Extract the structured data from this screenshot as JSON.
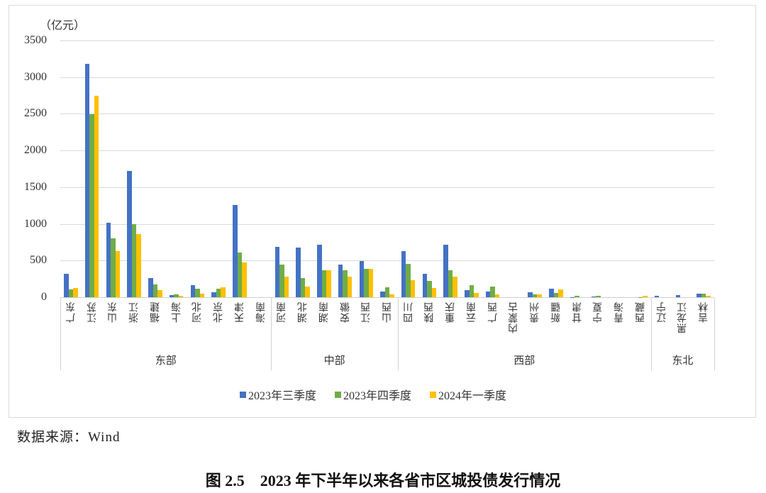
{
  "chart_data": {
    "type": "bar",
    "title": "图 2.5　2023 年下半年以来各省市区城投债发行情况",
    "ylabel": "（亿元）",
    "xlabel": "",
    "ylim": [
      0,
      3500
    ],
    "yticks": [
      0,
      500,
      1000,
      1500,
      2000,
      2500,
      3000,
      3500
    ],
    "grid": true,
    "legend_position": "bottom",
    "groups": [
      {
        "name": "东部",
        "categories": [
          "广东",
          "江苏",
          "山东",
          "浙江",
          "福建",
          "上海",
          "河北",
          "北京",
          "天津",
          "海南"
        ]
      },
      {
        "name": "中部",
        "categories": [
          "河南",
          "湖北",
          "湖南",
          "安徽",
          "江西",
          "山西"
        ]
      },
      {
        "name": "西部",
        "categories": [
          "四川",
          "陕西",
          "重庆",
          "云南",
          "广西",
          "内蒙古",
          "贵州",
          "新疆",
          "甘肃",
          "宁夏",
          "青海",
          "西藏"
        ]
      },
      {
        "name": "东北",
        "categories": [
          "辽宁",
          "黑龙江",
          "吉林"
        ]
      }
    ],
    "categories": [
      "广东",
      "江苏",
      "山东",
      "浙江",
      "福建",
      "上海",
      "河北",
      "北京",
      "天津",
      "海南",
      "河南",
      "湖北",
      "湖南",
      "安徽",
      "江西",
      "山西",
      "四川",
      "陕西",
      "重庆",
      "云南",
      "广西",
      "内蒙古",
      "贵州",
      "新疆",
      "甘肃",
      "宁夏",
      "青海",
      "西藏",
      "辽宁",
      "黑龙江",
      "吉林"
    ],
    "series": [
      {
        "name": "2023年三季度",
        "color": "#4472C4",
        "values": [
          320,
          3180,
          1020,
          1725,
          260,
          30,
          160,
          70,
          1260,
          0,
          690,
          675,
          720,
          440,
          495,
          75,
          630,
          320,
          720,
          100,
          75,
          0,
          65,
          120,
          3,
          5,
          0,
          0,
          22,
          25,
          48
        ]
      },
      {
        "name": "2023年四季度",
        "color": "#70AD47",
        "values": [
          105,
          2490,
          805,
          995,
          178,
          36,
          115,
          115,
          605,
          0,
          440,
          265,
          365,
          365,
          390,
          140,
          455,
          218,
          370,
          163,
          145,
          0,
          38,
          55,
          22,
          16,
          0,
          4,
          0,
          0,
          48
        ]
      },
      {
        "name": "2024年一季度",
        "color": "#FFC000",
        "values": [
          125,
          2750,
          632,
          860,
          93,
          19,
          48,
          132,
          470,
          0,
          285,
          147,
          368,
          285,
          382,
          38,
          230,
          125,
          285,
          54,
          35,
          0,
          38,
          106,
          0,
          0,
          0,
          22,
          0,
          0,
          22
        ]
      }
    ]
  },
  "axis": {
    "unit": "（亿元）",
    "yticks": [
      "3500",
      "3000",
      "2500",
      "2000",
      "1500",
      "1000",
      "500",
      "0"
    ]
  },
  "legend": {
    "items": [
      {
        "label": "2023年三季度",
        "color": "#4472C4"
      },
      {
        "label": "2023年四季度",
        "color": "#70AD47"
      },
      {
        "label": "2024年一季度",
        "color": "#FFC000"
      }
    ]
  },
  "source": "数据来源：Wind",
  "caption": "图 2.5　2023 年下半年以来各省市区城投债发行情况"
}
